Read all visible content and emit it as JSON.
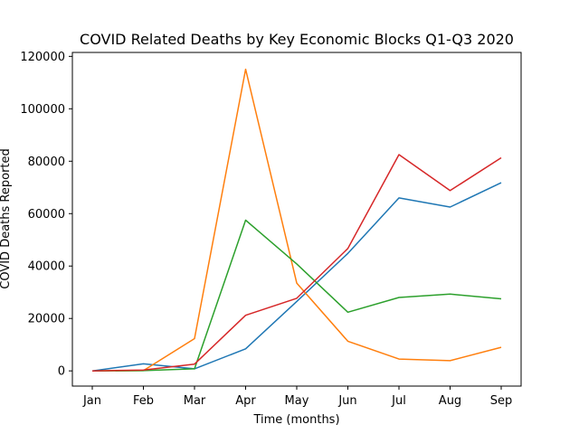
{
  "chart_data": {
    "type": "line",
    "title": "COVID Related Deaths by Key Economic Blocks Q1-Q3 2020",
    "xlabel": "Time (months)",
    "ylabel": "COVID Deaths Reported",
    "categories": [
      "Jan",
      "Feb",
      "Mar",
      "Apr",
      "May",
      "Jun",
      "Jul",
      "Aug",
      "Sep"
    ],
    "ylim": [
      -5800,
      121500
    ],
    "yticks": [
      0,
      20000,
      40000,
      60000,
      80000,
      100000,
      120000
    ],
    "ytick_labels": [
      "0",
      "20000",
      "40000",
      "60000",
      "80000",
      "100000",
      "120000"
    ],
    "grid": false,
    "legend": "none",
    "series": [
      {
        "color": "#1f77b4",
        "values": [
          0,
          2700,
          800,
          8400,
          26500,
          44800,
          66000,
          62500,
          71800
        ]
      },
      {
        "color": "#ff7f0e",
        "values": [
          0,
          100,
          12300,
          115100,
          33500,
          11300,
          4500,
          3900,
          9000
        ]
      },
      {
        "color": "#2ca02c",
        "values": [
          0,
          100,
          800,
          57500,
          40800,
          22400,
          28000,
          29300,
          27500
        ]
      },
      {
        "color": "#d62728",
        "values": [
          0,
          300,
          2600,
          21200,
          27700,
          46700,
          82500,
          68800,
          81300
        ]
      }
    ]
  }
}
